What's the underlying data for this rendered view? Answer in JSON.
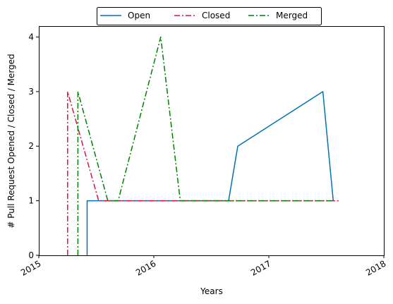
{
  "chart_data": {
    "type": "line",
    "title": "",
    "xlabel": "Years",
    "ylabel": "# Pull Request Opened / Closed / Merged",
    "xlim": [
      2015.0,
      2018.0
    ],
    "ylim": [
      0,
      4.2
    ],
    "x_ticks": [
      {
        "value": 2015,
        "label": "2015"
      },
      {
        "value": 2016,
        "label": "2016"
      },
      {
        "value": 2017,
        "label": "2017"
      },
      {
        "value": 2018,
        "label": "2018"
      }
    ],
    "y_ticks": [
      {
        "value": 0,
        "label": "0"
      },
      {
        "value": 1,
        "label": "1"
      },
      {
        "value": 2,
        "label": "2"
      },
      {
        "value": 3,
        "label": "3"
      },
      {
        "value": 4,
        "label": "4"
      }
    ],
    "grid": false,
    "legend": {
      "placement": "top-center",
      "columns": 3
    },
    "series": [
      {
        "name": "Open",
        "color": "#0072b2",
        "dash": "solid",
        "x": [
          2015.42,
          2015.42,
          2016.65,
          2016.73,
          2017.47,
          2017.56
        ],
        "y": [
          0,
          1,
          1,
          2,
          3,
          1
        ]
      },
      {
        "name": "Closed",
        "color": "#dc143c",
        "dash": "dashdot",
        "x": [
          2015.25,
          2015.25,
          2015.52,
          2017.62
        ],
        "y": [
          0,
          3,
          1,
          1
        ]
      },
      {
        "name": "Merged",
        "color": "#008000",
        "dash": "dashdot",
        "x": [
          2015.34,
          2015.34,
          2015.6,
          2015.69,
          2016.06,
          2016.23,
          2017.56
        ],
        "y": [
          0,
          3,
          1,
          1,
          4,
          1,
          1
        ]
      }
    ]
  }
}
